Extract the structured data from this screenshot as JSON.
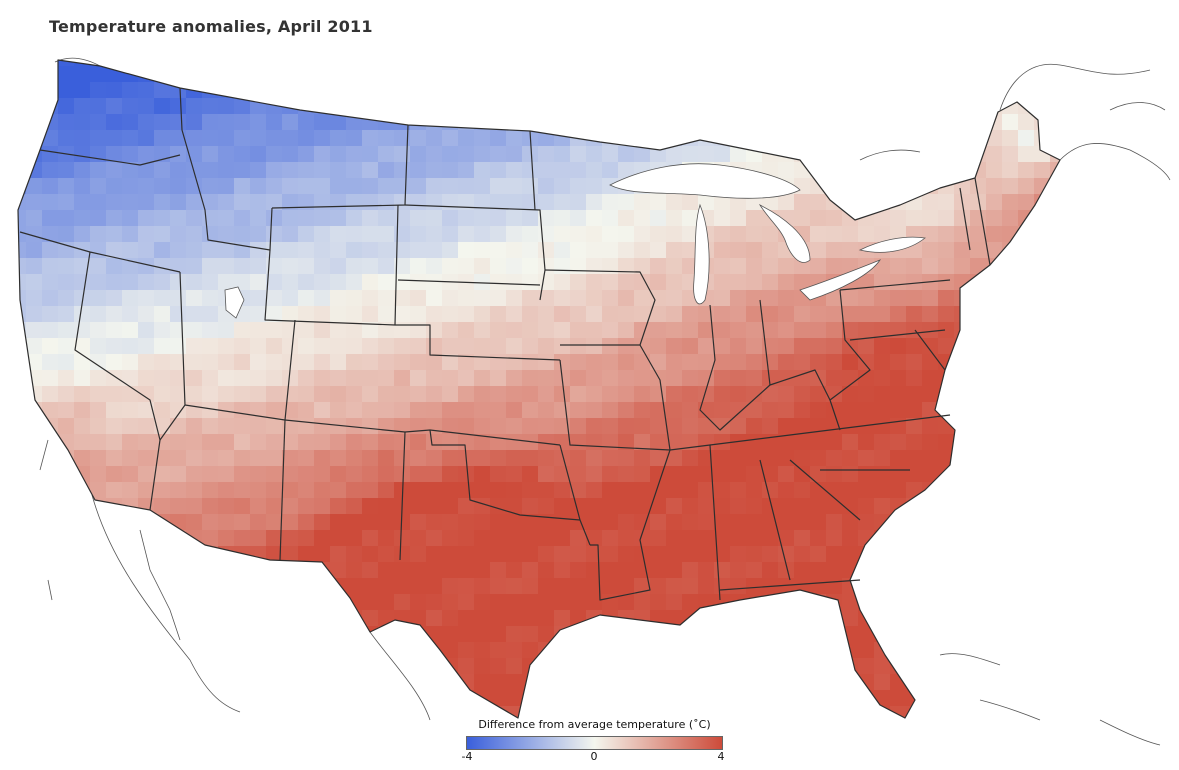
{
  "title": "Temperature anomalies, April 2011",
  "legend": {
    "title": "Difference from average temperature (˚C)",
    "min_label": "-4",
    "mid_label": "0",
    "max_label": "4",
    "color_low": "#3a5fdb",
    "color_mid": "#f4f6ee",
    "color_high": "#cd4b3a"
  },
  "map": {
    "region": "contiguous United States",
    "boundaries": "state lines",
    "pattern": "cold northwest (about -4), near average across the central north and northeast, warm south and southeast with the strongest warmth over Texas (about +4)"
  }
}
